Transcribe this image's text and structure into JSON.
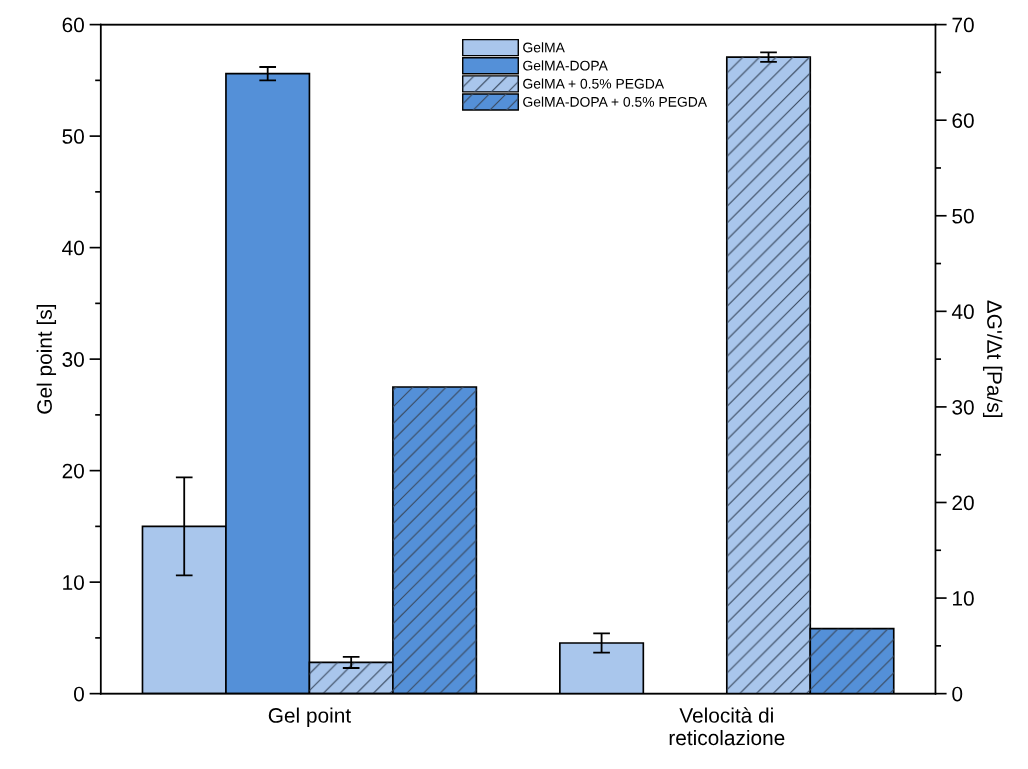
{
  "chart_data": {
    "type": "bar",
    "categories": [
      "Gel point",
      "Velocità di\nreticolazione"
    ],
    "ylabel": "Gel point [s]",
    "y2label": "ΔG'/Δt [Pa/s]",
    "ylim": [
      0,
      60
    ],
    "yticks": [
      0,
      {
        "value": 5,
        "label": null
      },
      10,
      {
        "value": 15,
        "label": null
      },
      20,
      {
        "value": 25,
        "label": null
      },
      30,
      {
        "value": 35,
        "label": null
      },
      40,
      {
        "value": 45,
        "label": null
      },
      50,
      {
        "value": 55,
        "label": null
      },
      60
    ],
    "y2lim": [
      0,
      70
    ],
    "y2ticks": [
      0,
      {
        "value": 5,
        "label": null
      },
      10,
      {
        "value": 15,
        "label": null
      },
      20,
      {
        "value": 25,
        "label": null
      },
      30,
      {
        "value": 35,
        "label": null
      },
      40,
      {
        "value": 45,
        "label": null
      },
      50,
      {
        "value": 55,
        "label": null
      },
      60,
      {
        "value": 65,
        "label": null
      },
      70
    ],
    "legend": "top",
    "grid": false,
    "series": [
      {
        "name": "GelMA",
        "color": "#a9c6ec",
        "values": [
          15,
          null
        ],
        "errors": [
          4.4,
          null
        ]
      },
      {
        "name": "GelMA-DOPA",
        "color": "#5490d8",
        "values": [
          55.6,
          null
        ],
        "errors": [
          0.6,
          null
        ]
      },
      {
        "name": "GelMA + 0.5% PEGDA",
        "color": "#a9c6ec",
        "values": [
          2.8,
          null
        ],
        "errors": [
          0.5,
          null
        ]
      },
      {
        "name": "GelMA-DOPA + 0.5% PEGDA",
        "color": "#5490d8",
        "values": [
          27.5,
          null
        ],
        "errors": [
          null,
          null
        ]
      },
      {
        "color": "#a9c6ec",
        "axis": "y2",
        "values": [
          null,
          5.3
        ],
        "errors": [
          null,
          1.0
        ]
      },
      {
        "color": "#5490d8",
        "axis": "y2",
        "values": [
          null,
          null
        ],
        "errors": [
          null,
          null
        ]
      },
      {
        "color": "#a9c6ec",
        "axis": "y2",
        "values": [
          null,
          66.6
        ],
        "errors": [
          null,
          0.5
        ]
      },
      {
        "color": "#5490d8",
        "axis": "y2",
        "values": [
          null,
          6.8
        ],
        "errors": [
          null,
          null
        ]
      }
    ]
  }
}
